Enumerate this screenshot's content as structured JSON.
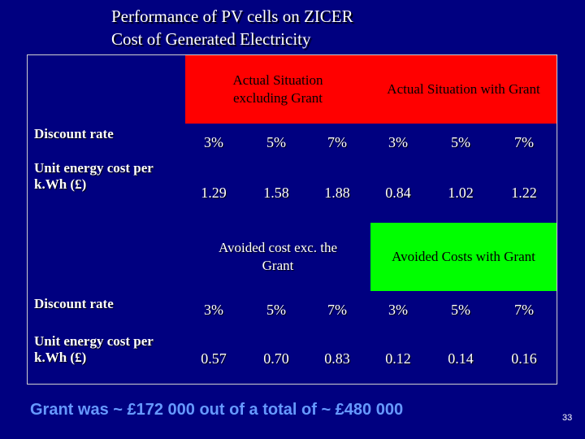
{
  "title": {
    "line1": "Performance of PV cells on ZICER",
    "line2": "Cost of Generated Electricity"
  },
  "colors": {
    "background": "#000080",
    "red_header": "#ff0000",
    "green_header": "#00ff00",
    "footer_text": "#6699ff"
  },
  "top_section": {
    "header_excl": "Actual Situation excluding  Grant",
    "header_incl": "Actual Situation with Grant",
    "discount_label": "Discount rate",
    "cost_label": "Unit energy cost per k.Wh (£)",
    "rates": [
      "3%",
      "5%",
      "7%",
      "3%",
      "5%",
      "7%"
    ],
    "costs": [
      "1.29",
      "1.58",
      "1.88",
      "0.84",
      "1.02",
      "1.22"
    ]
  },
  "bottom_section": {
    "header_excl": "Avoided cost exc. the Grant",
    "header_incl": "Avoided Costs with Grant",
    "discount_label": "Discount rate",
    "cost_label": "Unit energy cost per k.Wh (£)",
    "rates": [
      "3%",
      "5%",
      "7%",
      "3%",
      "5%",
      "7%"
    ],
    "costs": [
      "0.57",
      "0.70",
      "0.83",
      "0.12",
      "0.14",
      "0.16"
    ]
  },
  "footer": "Grant was ~ £172 000 out of a total of ~ £480 000",
  "page_number": "33"
}
